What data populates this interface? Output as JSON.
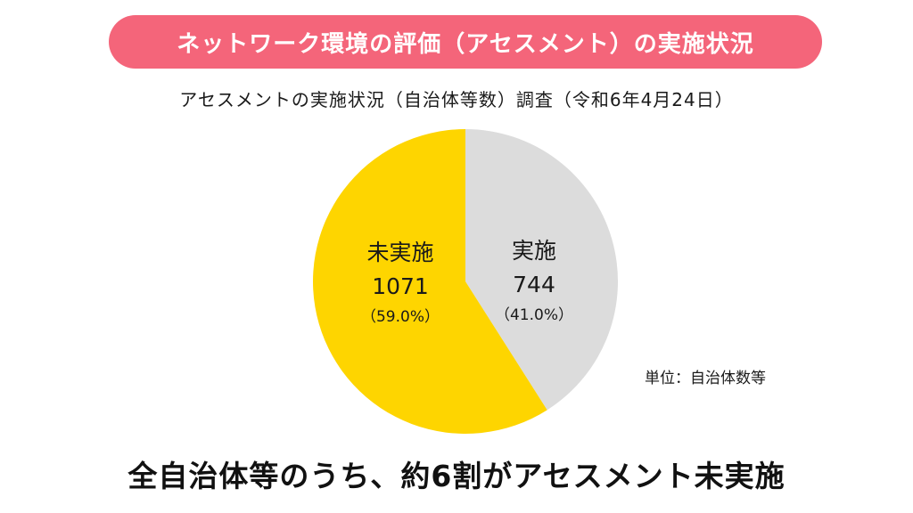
{
  "banner": {
    "title": "ネットワーク環境の評価（アセスメント）の実施状況"
  },
  "chart_title": "アセスメントの実施状況（自治体等数）調査（令和6年4月24日）",
  "unit_note": "単位：自治体数等",
  "conclusion": "全自治体等のうち、約6割がアセスメント未実施",
  "colors": {
    "banner": "#f4657a",
    "implemented": "#dcdcdc",
    "not_implemented": "#fed500"
  },
  "chart_data": {
    "type": "pie",
    "title": "アセスメントの実施状況（自治体等数）調査（令和6年4月24日）",
    "unit": "単位：自治体数等",
    "slices": [
      {
        "label": "実施",
        "value": 744,
        "value_label": "744",
        "percent_label": "（41.0%）",
        "color": "#dcdcdc"
      },
      {
        "label": "未実施",
        "value": 1071,
        "value_label": "1071",
        "percent_label": "（59.0%）",
        "color": "#fed500"
      }
    ]
  }
}
